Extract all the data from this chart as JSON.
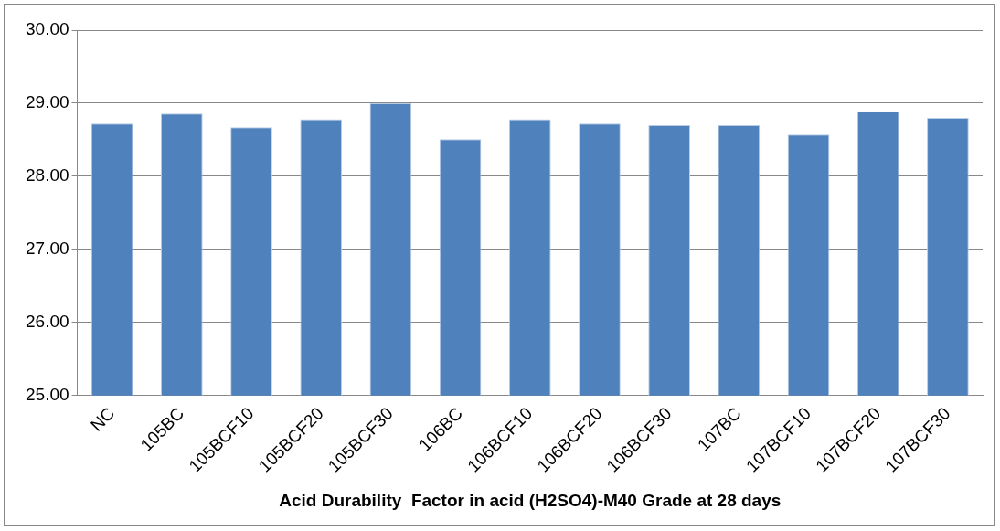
{
  "chart_data": {
    "type": "bar",
    "xlabel": "Acid Durability  Factor in acid (H2SO4)-M40 Grade at 28 days",
    "categories": [
      "NC",
      "105BC",
      "105BCF10",
      "105BCF20",
      "105BCF30",
      "106BC",
      "106BCF10",
      "106BCF20",
      "106BCF30",
      "107BC",
      "107BCF10",
      "107BCF20",
      "107BCF30"
    ],
    "values": [
      28.72,
      28.86,
      28.67,
      28.78,
      29.0,
      28.51,
      28.78,
      28.72,
      28.7,
      28.7,
      28.57,
      28.89,
      28.8
    ],
    "color": "#4f81bd",
    "ylim": [
      25,
      30
    ],
    "yticks": [
      {
        "value": 25,
        "label": "25.00"
      },
      {
        "value": 26,
        "label": "26.00"
      },
      {
        "value": 27,
        "label": "27.00"
      },
      {
        "value": 28,
        "label": "28.00"
      },
      {
        "value": 29,
        "label": "29.00"
      },
      {
        "value": 30,
        "label": "30.00"
      }
    ],
    "grid": "y",
    "legend": false
  }
}
